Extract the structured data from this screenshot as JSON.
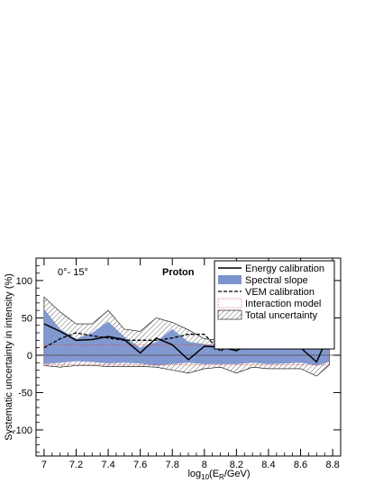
{
  "chart_data": {
    "type": "line",
    "xlabel": "log10(E_R/GeV)",
    "xlabel_main": "log",
    "xlabel_sub1": "10",
    "xlabel_mid": "(E",
    "xlabel_sub2": "R",
    "xlabel_end": "/GeV)",
    "ylabel": "Systematic uncertainty in intensity (%)",
    "xlim": [
      6.95,
      8.85
    ],
    "ylim": [
      -135,
      130
    ],
    "x_ticks": [
      "7",
      "7.2",
      "7.4",
      "7.6",
      "7.8",
      "8",
      "8.2",
      "8.4",
      "8.6",
      "8.8"
    ],
    "y_ticks": [
      "100",
      "50",
      "0",
      "-50",
      "-100"
    ],
    "annotations": {
      "zenith": "0°- 15°",
      "particle": "Proton"
    },
    "x": [
      7.0,
      7.1,
      7.2,
      7.3,
      7.4,
      7.5,
      7.6,
      7.7,
      7.8,
      7.9,
      8.0,
      8.1,
      8.2,
      8.3,
      8.4,
      8.5,
      8.6,
      8.7,
      8.78
    ],
    "series": [
      {
        "name": "Energy calibration",
        "style": "solid-line",
        "color": "#000000",
        "values": [
          42,
          32,
          20,
          21,
          25,
          21,
          3,
          23,
          14,
          -6,
          12,
          11,
          6,
          17,
          30,
          18,
          10,
          -9,
          30
        ]
      },
      {
        "name": "Spectral slope",
        "style": "filled-band",
        "color": "#7b93cf",
        "upper": [
          62,
          35,
          22,
          30,
          45,
          25,
          10,
          18,
          35,
          18,
          15,
          12,
          18,
          20,
          25,
          28,
          18,
          22,
          13
        ],
        "lower": [
          -12,
          -10,
          -8,
          -9,
          -11,
          -10,
          -11,
          -14,
          -12,
          -10,
          -12,
          -12,
          -12,
          -10,
          -12,
          -11,
          -10,
          -14,
          -9
        ]
      },
      {
        "name": "VEM calibration",
        "style": "dashed-line",
        "color": "#000000",
        "values": [
          10,
          22,
          30,
          26,
          23,
          20,
          20,
          20,
          23,
          28,
          28,
          5,
          22,
          35,
          25,
          13,
          10,
          12,
          14
        ]
      },
      {
        "name": "Interaction model",
        "style": "dotted-band",
        "color": "#e04040",
        "upper": [
          14,
          14,
          14,
          14,
          14,
          14,
          14,
          14,
          14,
          14,
          14,
          14,
          14,
          14,
          14,
          14,
          14,
          14,
          14
        ],
        "lower": [
          -13,
          -13,
          -13,
          -13,
          -13,
          -13,
          -13,
          -13,
          -13,
          -13,
          -13,
          -13,
          -13,
          -13,
          -13,
          -13,
          -13,
          -13,
          -13
        ]
      },
      {
        "name": "Total uncertainty",
        "style": "hatched-band",
        "color": "#000000",
        "upper": [
          78,
          58,
          42,
          42,
          60,
          35,
          32,
          50,
          44,
          34,
          22,
          20,
          20,
          42,
          38,
          35,
          22,
          28,
          30
        ],
        "lower": [
          -14,
          -16,
          -14,
          -14,
          -15,
          -15,
          -15,
          -16,
          -20,
          -24,
          -18,
          -16,
          -24,
          -16,
          -18,
          -18,
          -18,
          -28,
          -13
        ]
      }
    ],
    "legend_position": "top-right",
    "grid": false
  }
}
